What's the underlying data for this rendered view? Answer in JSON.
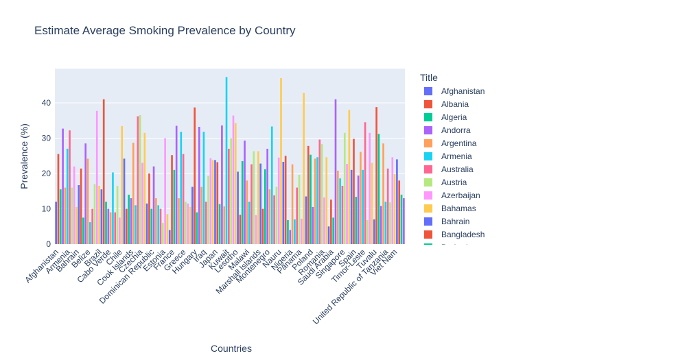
{
  "chart_data": {
    "type": "bar",
    "title": "Estimate Average Smoking Prevalence by Country",
    "x_label": "Countries",
    "y_label": "Prevalence (%)",
    "ylim": [
      0,
      49.7
    ],
    "yticks": [
      0,
      10,
      20,
      30,
      40
    ],
    "grid": true,
    "palette": [
      "#636efa",
      "#EF553B",
      "#00cc96",
      "#ab63fa",
      "#FFA15A",
      "#19d3f3",
      "#FF6692",
      "#B6E880",
      "#FF97FF",
      "#FECB52"
    ],
    "categories": [
      "Afghanistan",
      null,
      null,
      null,
      null,
      "Armenia",
      null,
      null,
      null,
      "Bahrain",
      null,
      null,
      null,
      null,
      "Belize",
      null,
      null,
      null,
      null,
      "Brazil",
      null,
      null,
      null,
      "Cabo Verde",
      null,
      null,
      null,
      null,
      "Chile",
      null,
      null,
      null,
      null,
      "Cook Islands",
      null,
      null,
      null,
      "Czechia",
      null,
      null,
      null,
      null,
      "Dominican Republic",
      null,
      null,
      null,
      null,
      "Estonia",
      null,
      null,
      null,
      "France",
      null,
      null,
      null,
      null,
      "Greece",
      null,
      null,
      null,
      null,
      "Hungary",
      null,
      null,
      null,
      "Iraq",
      null,
      null,
      null,
      null,
      "Japan",
      null,
      null,
      null,
      null,
      "Kuwait",
      null,
      null,
      null,
      "Lesotho",
      null,
      null,
      null,
      null,
      "Malawi",
      null,
      null,
      null,
      null,
      "Marshall Islands",
      null,
      null,
      null,
      "Montenegro",
      null,
      null,
      null,
      null,
      "Nauru",
      null,
      null,
      null,
      null,
      "Nigeria",
      null,
      null,
      null,
      "Panama",
      null,
      null,
      null,
      null,
      "Poland",
      null,
      null,
      null,
      null,
      "Romania",
      null,
      null,
      null,
      "Saudi Arabia",
      null,
      null,
      null,
      null,
      "Singapore",
      null,
      null,
      null,
      null,
      "Spain",
      null,
      null,
      null,
      "Timor-Leste",
      null,
      null,
      null,
      null,
      "Tuvalu",
      null,
      null,
      null,
      null,
      "United Republic of Tanzania",
      null,
      null,
      null,
      "Viet Nam",
      null,
      null,
      null,
      null
    ],
    "values": [
      12,
      25.5,
      15.5,
      32.7,
      16,
      27,
      32.2,
      16,
      22,
      10.5,
      16.7,
      21.4,
      7.5,
      28.5,
      24.2,
      6.2,
      10,
      17,
      37.7,
      16.5,
      15.5,
      41,
      12,
      10,
      9,
      20.3,
      9,
      16.5,
      7.5,
      33.4,
      24.2,
      10,
      14,
      13,
      28.7,
      11,
      36.2,
      36.5,
      23,
      31.5,
      11.5,
      20,
      10,
      22,
      13,
      11,
      10,
      6,
      30,
      8.5,
      4,
      25.2,
      21,
      33.5,
      13,
      31.8,
      25.5,
      12,
      11.5,
      10.5,
      16.2,
      38.7,
      9,
      33.2,
      16.2,
      31.8,
      12,
      19.3,
      24.3,
      23.8,
      23.8,
      23.2,
      11.3,
      33.6,
      10.7,
      47.3,
      27,
      30,
      36.4,
      34.3,
      20.5,
      8.3,
      23.5,
      29.3,
      18,
      12,
      22.6,
      26.3,
      8.2,
      26.3,
      22.8,
      10,
      21.2,
      27,
      15.5,
      33.3,
      13.8,
      16.2,
      24.5,
      47,
      23.3,
      25,
      6.8,
      4,
      22.6,
      7,
      16,
      19.6,
      7.2,
      42.8,
      13.5,
      27.8,
      25.3,
      10.5,
      24.2,
      24.6,
      29.6,
      28.3,
      13.2,
      24.6,
      5,
      12.6,
      7.5,
      41,
      20.8,
      18.6,
      16.5,
      31.5,
      22.7,
      38,
      21,
      29.8,
      13.4,
      19.4,
      26.1,
      21,
      34.5,
      6.8,
      31.5,
      23,
      7,
      38.8,
      31.2,
      10.8,
      28.5,
      12,
      21.4,
      11.8,
      24.6,
      19.8,
      24,
      18,
      14,
      13
    ],
    "legend": {
      "title": "Title",
      "series": [
        {
          "name": "Afghanistan",
          "color": "#636efa"
        },
        {
          "name": "Albania",
          "color": "#EF553B"
        },
        {
          "name": "Algeria",
          "color": "#00cc96"
        },
        {
          "name": "Andorra",
          "color": "#ab63fa"
        },
        {
          "name": "Argentina",
          "color": "#FFA15A"
        },
        {
          "name": "Armenia",
          "color": "#19d3f3"
        },
        {
          "name": "Australia",
          "color": "#FF6692"
        },
        {
          "name": "Austria",
          "color": "#B6E880"
        },
        {
          "name": "Azerbaijan",
          "color": "#FF97FF"
        },
        {
          "name": "Bahamas",
          "color": "#FECB52"
        },
        {
          "name": "Bahrain",
          "color": "#636efa"
        },
        {
          "name": "Bangladesh",
          "color": "#EF553B"
        },
        {
          "name": "Barbados",
          "color": "#00cc96"
        }
      ]
    }
  }
}
